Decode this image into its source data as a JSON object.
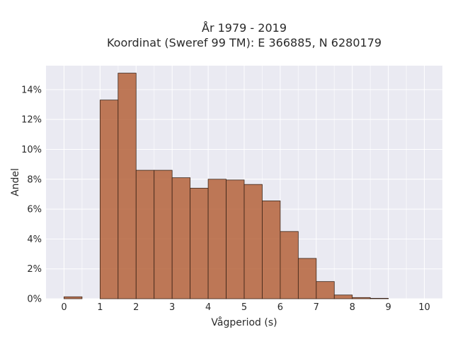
{
  "chart_data": {
    "type": "bar",
    "title_lines": [
      "År 1979 - 2019",
      "Koordinat (Sweref 99 TM): E 366885, N 6280179"
    ],
    "xlabel": "Vågperiod (s)",
    "ylabel": "Andel",
    "xlim": [
      -0.5,
      10.5
    ],
    "ylim": [
      0,
      15.6
    ],
    "xticks": [
      0,
      1,
      2,
      3,
      4,
      5,
      6,
      7,
      8,
      9,
      10
    ],
    "yticks": [
      0,
      2,
      4,
      6,
      8,
      10,
      12,
      14
    ],
    "ytick_suffix": "%",
    "bin_width": 0.5,
    "bins": [
      {
        "x0": 0.0,
        "value": 0.13
      },
      {
        "x0": 1.0,
        "value": 13.3
      },
      {
        "x0": 1.5,
        "value": 15.1
      },
      {
        "x0": 2.0,
        "value": 8.6
      },
      {
        "x0": 2.5,
        "value": 8.6
      },
      {
        "x0": 3.0,
        "value": 8.1
      },
      {
        "x0": 3.5,
        "value": 7.4
      },
      {
        "x0": 4.0,
        "value": 8.0
      },
      {
        "x0": 4.5,
        "value": 7.95
      },
      {
        "x0": 5.0,
        "value": 7.65
      },
      {
        "x0": 5.5,
        "value": 6.55
      },
      {
        "x0": 6.0,
        "value": 4.5
      },
      {
        "x0": 6.5,
        "value": 2.7
      },
      {
        "x0": 7.0,
        "value": 1.15
      },
      {
        "x0": 7.5,
        "value": 0.25
      },
      {
        "x0": 8.0,
        "value": 0.08
      },
      {
        "x0": 8.5,
        "value": 0.03
      }
    ],
    "grid": true,
    "colors": {
      "bar": "#b5633b",
      "bar_edge": "#3a2418",
      "plot_bg": "#eaeaf2",
      "grid": "#ffffff"
    }
  }
}
